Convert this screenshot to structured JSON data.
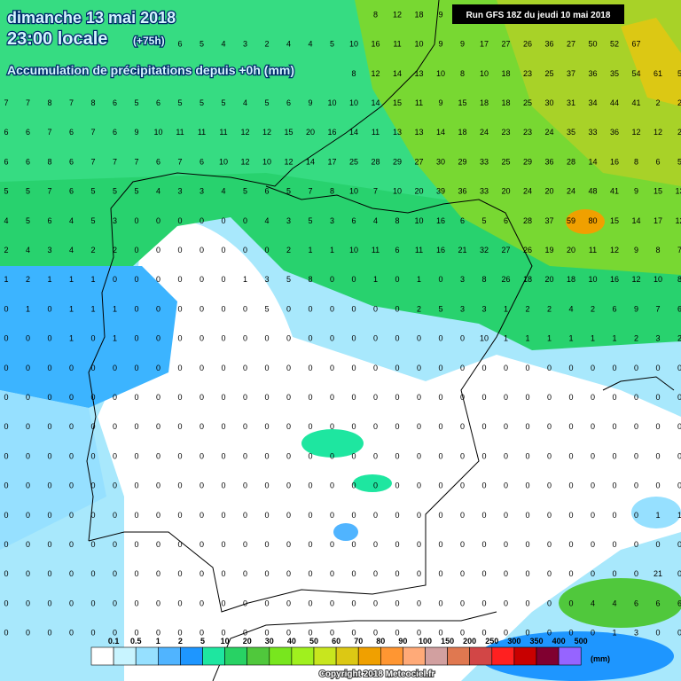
{
  "header": {
    "date": "dimanche 13 mai 2018",
    "time": "23:00 locale",
    "lead": "(+75h)",
    "subtitle": "Accumulation de précipitations depuis +0h (mm)",
    "run": "Run GFS 18Z du jeudi 10 mai 2018"
  },
  "grid": {
    "rows": [
      [
        null,
        null,
        null,
        null,
        null,
        null,
        null,
        null,
        null,
        null,
        null,
        null,
        null,
        null,
        null,
        null,
        null,
        8,
        12,
        18,
        9,
        null,
        null,
        null,
        null,
        null,
        null,
        null,
        null,
        null,
        null,
        null
      ],
      [
        null,
        null,
        null,
        null,
        null,
        null,
        null,
        null,
        6,
        5,
        4,
        3,
        2,
        4,
        4,
        5,
        10,
        16,
        11,
        10,
        9,
        9,
        17,
        27,
        26,
        36,
        27,
        50,
        52,
        67,
        null,
        null
      ],
      [
        null,
        null,
        null,
        null,
        null,
        null,
        null,
        null,
        null,
        null,
        null,
        null,
        null,
        null,
        null,
        null,
        8,
        12,
        14,
        13,
        10,
        8,
        10,
        18,
        23,
        25,
        37,
        36,
        35,
        54,
        61,
        5
      ],
      [
        7,
        7,
        8,
        7,
        8,
        6,
        5,
        6,
        5,
        5,
        5,
        4,
        5,
        6,
        9,
        10,
        10,
        14,
        15,
        11,
        9,
        15,
        18,
        18,
        25,
        30,
        31,
        34,
        44,
        41,
        2,
        2
      ],
      [
        6,
        6,
        7,
        6,
        7,
        6,
        9,
        10,
        11,
        11,
        11,
        12,
        12,
        15,
        20,
        16,
        14,
        11,
        13,
        13,
        14,
        18,
        24,
        23,
        23,
        24,
        35,
        33,
        36,
        12,
        12,
        2
      ],
      [
        6,
        6,
        8,
        6,
        7,
        7,
        7,
        6,
        7,
        6,
        10,
        12,
        10,
        12,
        14,
        17,
        25,
        28,
        29,
        27,
        30,
        29,
        33,
        25,
        29,
        36,
        28,
        14,
        16,
        8,
        6,
        5
      ],
      [
        5,
        5,
        7,
        6,
        5,
        5,
        5,
        4,
        3,
        3,
        4,
        5,
        6,
        5,
        7,
        8,
        10,
        7,
        10,
        20,
        39,
        36,
        33,
        20,
        24,
        20,
        24,
        48,
        41,
        9,
        15,
        13
      ],
      [
        4,
        5,
        6,
        4,
        5,
        3,
        0,
        0,
        0,
        0,
        0,
        0,
        4,
        3,
        5,
        3,
        6,
        4,
        8,
        10,
        16,
        6,
        5,
        6,
        28,
        37,
        59,
        80,
        15,
        14,
        17,
        12
      ],
      [
        2,
        4,
        3,
        4,
        2,
        2,
        0,
        0,
        0,
        0,
        0,
        0,
        0,
        2,
        1,
        1,
        10,
        11,
        6,
        11,
        16,
        21,
        32,
        27,
        26,
        19,
        20,
        11,
        12,
        9,
        8,
        7
      ],
      [
        1,
        2,
        1,
        1,
        1,
        0,
        0,
        0,
        0,
        0,
        0,
        1,
        3,
        5,
        8,
        0,
        0,
        1,
        0,
        1,
        0,
        3,
        8,
        26,
        18,
        20,
        18,
        10,
        16,
        12,
        10,
        8
      ],
      [
        0,
        1,
        0,
        1,
        1,
        1,
        0,
        0,
        0,
        0,
        0,
        0,
        5,
        0,
        0,
        0,
        0,
        0,
        0,
        2,
        5,
        3,
        3,
        1,
        2,
        2,
        4,
        2,
        6,
        9,
        7,
        6
      ],
      [
        0,
        0,
        0,
        1,
        0,
        1,
        0,
        0,
        0,
        0,
        0,
        0,
        0,
        0,
        0,
        0,
        0,
        0,
        0,
        0,
        0,
        0,
        10,
        1,
        1,
        1,
        1,
        1,
        1,
        2,
        3,
        2
      ],
      [
        0,
        0,
        0,
        0,
        0,
        0,
        0,
        0,
        0,
        0,
        0,
        0,
        0,
        0,
        0,
        0,
        0,
        0,
        0,
        0,
        0,
        0,
        0,
        0,
        0,
        0,
        0,
        0,
        0,
        0,
        0,
        0
      ],
      [
        0,
        0,
        0,
        0,
        0,
        0,
        0,
        0,
        0,
        0,
        0,
        0,
        0,
        0,
        0,
        0,
        0,
        0,
        0,
        0,
        0,
        0,
        0,
        0,
        0,
        0,
        0,
        0,
        0,
        0,
        0,
        0
      ],
      [
        0,
        0,
        0,
        0,
        0,
        0,
        0,
        0,
        0,
        0,
        0,
        0,
        0,
        0,
        0,
        0,
        0,
        0,
        0,
        0,
        0,
        0,
        0,
        0,
        0,
        0,
        0,
        0,
        0,
        0,
        0,
        0
      ],
      [
        0,
        0,
        0,
        0,
        0,
        0,
        0,
        0,
        0,
        0,
        0,
        0,
        0,
        0,
        0,
        0,
        0,
        0,
        0,
        0,
        0,
        0,
        0,
        0,
        0,
        0,
        0,
        0,
        0,
        0,
        0,
        0
      ],
      [
        0,
        0,
        0,
        0,
        0,
        0,
        0,
        0,
        0,
        0,
        0,
        0,
        0,
        0,
        0,
        0,
        0,
        0,
        0,
        0,
        0,
        0,
        0,
        0,
        0,
        0,
        0,
        0,
        0,
        0,
        0,
        0
      ],
      [
        0,
        0,
        0,
        0,
        0,
        0,
        0,
        0,
        0,
        0,
        0,
        0,
        0,
        0,
        0,
        0,
        0,
        0,
        0,
        0,
        0,
        0,
        0,
        0,
        0,
        0,
        0,
        0,
        0,
        0,
        1,
        1
      ],
      [
        0,
        0,
        0,
        0,
        0,
        0,
        0,
        0,
        0,
        0,
        0,
        0,
        0,
        0,
        0,
        0,
        0,
        0,
        0,
        0,
        0,
        0,
        0,
        0,
        0,
        0,
        0,
        0,
        0,
        0,
        0,
        0
      ],
      [
        0,
        0,
        0,
        0,
        0,
        0,
        0,
        0,
        0,
        0,
        0,
        0,
        0,
        0,
        0,
        0,
        0,
        0,
        0,
        0,
        0,
        0,
        0,
        0,
        0,
        0,
        0,
        0,
        0,
        0,
        21,
        0
      ],
      [
        0,
        0,
        0,
        0,
        0,
        0,
        0,
        0,
        0,
        0,
        0,
        0,
        0,
        0,
        0,
        0,
        0,
        0,
        0,
        0,
        0,
        0,
        0,
        0,
        0,
        0,
        0,
        4,
        4,
        6,
        6,
        6
      ],
      [
        0,
        0,
        0,
        0,
        0,
        0,
        0,
        0,
        0,
        0,
        0,
        0,
        0,
        0,
        0,
        0,
        0,
        0,
        0,
        0,
        0,
        0,
        0,
        0,
        0,
        0,
        0,
        0,
        1,
        3,
        0,
        0
      ]
    ]
  },
  "legend": {
    "labels": [
      "0.1",
      "0.5",
      "1",
      "2",
      "5",
      "10",
      "20",
      "30",
      "40",
      "50",
      "60",
      "70",
      "80",
      "90",
      "100",
      "150",
      "200",
      "250",
      "300",
      "350",
      "400",
      "500"
    ],
    "colors": [
      "#ffffff",
      "#c8f4ff",
      "#96e0ff",
      "#50b4ff",
      "#1e96ff",
      "#1ee6a0",
      "#28d264",
      "#50c83c",
      "#78e61e",
      "#a0f01e",
      "#c8e61e",
      "#dcc814",
      "#f0a000",
      "#ff9632",
      "#ffaa78",
      "#d2a0a0",
      "#e07850",
      "#d24646",
      "#ff2020",
      "#c80000",
      "#800030",
      "#9664ff"
    ],
    "unit": "(mm)"
  },
  "footer": {
    "copyright": "Copyright 2018 Meteociel.fr"
  }
}
